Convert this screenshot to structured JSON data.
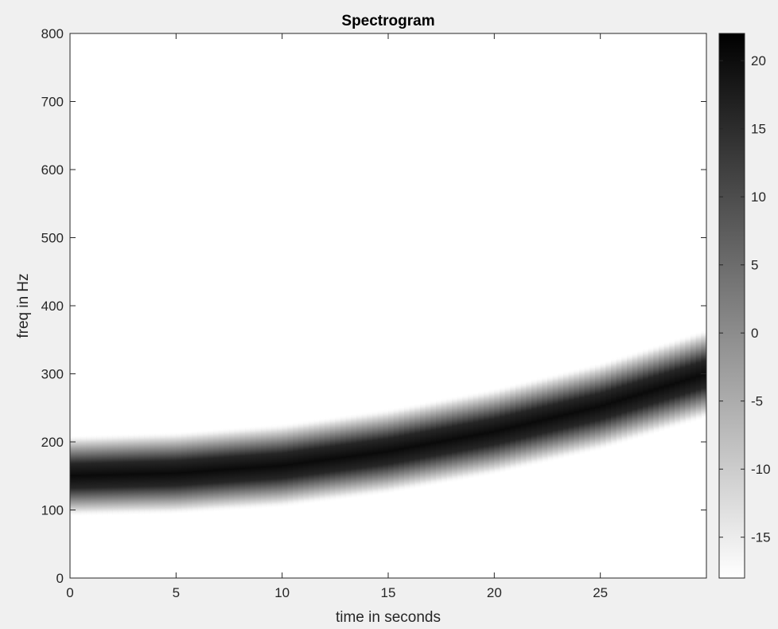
{
  "chart_data": {
    "type": "heatmap",
    "title": "Spectrogram",
    "xlabel": "time in seconds",
    "ylabel": "freq in Hz",
    "xlim": [
      0,
      30
    ],
    "ylim": [
      0,
      800
    ],
    "xticks": [
      0,
      5,
      10,
      15,
      20,
      25
    ],
    "yticks": [
      0,
      100,
      200,
      300,
      400,
      500,
      600,
      700,
      800
    ],
    "colormap": "gray (reversed): high = black, low = white",
    "colorbar": {
      "range": [
        -18,
        22
      ],
      "ticks": [
        -15,
        -10,
        -5,
        0,
        5,
        10,
        15,
        20
      ],
      "tick_labels": [
        "-15",
        "-10",
        "-5",
        "0",
        "5",
        "10",
        "15",
        "20"
      ]
    },
    "band": {
      "description": "chirp ridge: frequency rising quadratically with time",
      "center_freq_hz": [
        {
          "t": 0,
          "f": 150
        },
        {
          "t": 5,
          "f": 154
        },
        {
          "t": 10,
          "f": 165
        },
        {
          "t": 15,
          "f": 186
        },
        {
          "t": 20,
          "f": 215
        },
        {
          "t": 25,
          "f": 252
        },
        {
          "t": 30,
          "f": 300
        }
      ],
      "half_width_hz": 60,
      "peak_db": 22,
      "floor_db": -18
    },
    "colors": {
      "background": "#f0f0f0",
      "axes_face": "#ffffff",
      "axis_line": "#262626"
    }
  }
}
